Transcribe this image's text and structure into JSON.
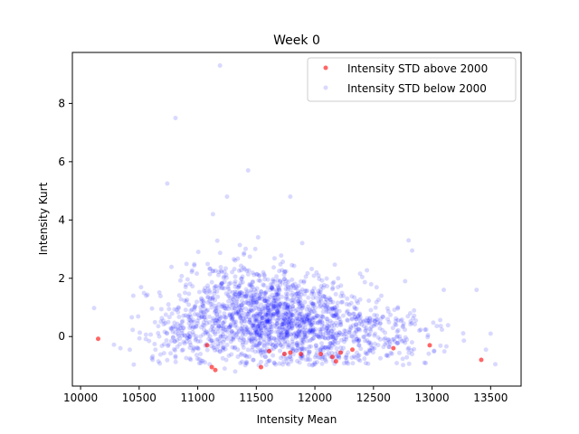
{
  "chart_data": {
    "type": "scatter",
    "title": "Week 0",
    "xlabel": "Intensity Mean",
    "ylabel": "Intensity Kurt",
    "xlim": [
      9930,
      13760
    ],
    "ylim": [
      -1.7,
      9.75
    ],
    "xticks": [
      10000,
      10500,
      11000,
      11500,
      12000,
      12500,
      13000,
      13500
    ],
    "yticks": [
      0,
      2,
      4,
      6,
      8
    ],
    "legend_position": "top-right",
    "grid": false,
    "colors": {
      "above": "#ff0000",
      "below": "#0000ff"
    },
    "series": [
      {
        "name": "Intensity STD above 2000",
        "color": "#ff0000",
        "opacity": 0.6,
        "points": [
          [
            10150,
            -0.08
          ],
          [
            11080,
            -0.3
          ],
          [
            11120,
            -1.05
          ],
          [
            11150,
            -1.15
          ],
          [
            11540,
            -1.05
          ],
          [
            11610,
            -0.5
          ],
          [
            11740,
            -0.6
          ],
          [
            11790,
            -0.55
          ],
          [
            11880,
            -0.6
          ],
          [
            12050,
            -0.6
          ],
          [
            12150,
            -0.7
          ],
          [
            12180,
            -0.85
          ],
          [
            12220,
            -0.55
          ],
          [
            12320,
            -0.45
          ],
          [
            12670,
            -0.4
          ],
          [
            12980,
            -0.3
          ],
          [
            13420,
            -0.8
          ]
        ]
      },
      {
        "name": "Intensity STD below 2000",
        "color": "#0000ff",
        "opacity": 0.15,
        "outliers": [
          [
            11190,
            9.3
          ],
          [
            10810,
            7.5
          ],
          [
            10740,
            5.25
          ],
          [
            11430,
            5.7
          ],
          [
            11250,
            4.8
          ],
          [
            11790,
            4.8
          ],
          [
            11130,
            4.2
          ],
          [
            10340,
            -0.4
          ],
          [
            10420,
            -0.45
          ],
          [
            10450,
            1.4
          ],
          [
            10560,
            1.4
          ],
          [
            13540,
            -0.95
          ],
          [
            13460,
            -0.45
          ],
          [
            13500,
            0.1
          ],
          [
            13380,
            1.6
          ],
          [
            13100,
            1.6
          ],
          [
            12800,
            3.3
          ],
          [
            12830,
            2.95
          ],
          [
            12770,
            1.9
          ],
          [
            11230,
            -1.1
          ],
          [
            11320,
            -1.2
          ]
        ],
        "bulk_clusters": [
          {
            "center": [
              11650,
              0.6
            ],
            "spread": [
              380,
              0.8
            ],
            "count": 1150
          },
          {
            "center": [
              11350,
              1.3
            ],
            "spread": [
              300,
              0.8
            ],
            "count": 220
          },
          {
            "center": [
              12250,
              0.2
            ],
            "spread": [
              330,
              0.6
            ],
            "count": 260
          },
          {
            "center": [
              12650,
              -0.1
            ],
            "spread": [
              260,
              0.5
            ],
            "count": 90
          },
          {
            "center": [
              10900,
              0.1
            ],
            "spread": [
              220,
              0.5
            ],
            "count": 150
          }
        ]
      }
    ]
  }
}
